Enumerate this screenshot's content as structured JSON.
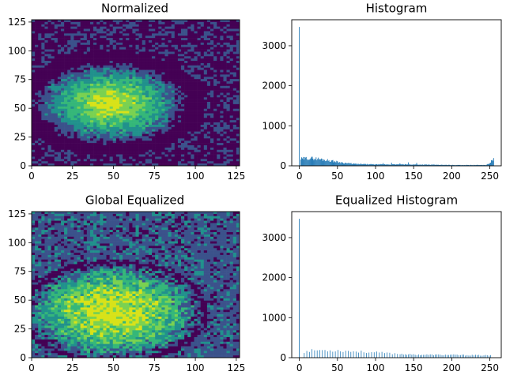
{
  "colors": {
    "bar": "#1f77b4",
    "viridis_low": "#440154",
    "viridis_mid": "#21918c",
    "viridis_high": "#fde725",
    "axis": "#000000"
  },
  "chart_data": [
    {
      "type": "heatmap",
      "title": "Normalized",
      "xlim": [
        0,
        127
      ],
      "ylim": [
        0,
        127
      ],
      "xticks": [
        0,
        25,
        50,
        75,
        100,
        125
      ],
      "yticks": [
        0,
        25,
        50,
        75,
        100,
        125
      ],
      "colormap": "viridis",
      "center": [
        48,
        54
      ],
      "levels": [
        0.12,
        0.3,
        0.5,
        0.7,
        0.88,
        1.0
      ]
    },
    {
      "type": "bar",
      "title": "Histogram",
      "xlim": [
        -10,
        265
      ],
      "ylim": [
        0,
        3650
      ],
      "xticks": [
        0,
        50,
        100,
        150,
        200,
        250
      ],
      "yticks": [
        0,
        1000,
        2000,
        3000
      ],
      "peak": {
        "x": 0,
        "y": 3470
      },
      "tail": [
        {
          "x": 2,
          "y": 170
        },
        {
          "x": 10,
          "y": 190
        },
        {
          "x": 20,
          "y": 185
        },
        {
          "x": 30,
          "y": 160
        },
        {
          "x": 40,
          "y": 130
        },
        {
          "x": 50,
          "y": 100
        },
        {
          "x": 60,
          "y": 70
        },
        {
          "x": 75,
          "y": 45
        },
        {
          "x": 100,
          "y": 35
        },
        {
          "x": 140,
          "y": 35
        },
        {
          "x": 200,
          "y": 20
        },
        {
          "x": 245,
          "y": 20
        },
        {
          "x": 250,
          "y": 60
        },
        {
          "x": 253,
          "y": 150
        },
        {
          "x": 255,
          "y": 160
        }
      ]
    },
    {
      "type": "heatmap",
      "title": "Global Equalized",
      "xlim": [
        0,
        127
      ],
      "ylim": [
        0,
        127
      ],
      "xticks": [
        0,
        25,
        50,
        75,
        100,
        125
      ],
      "yticks": [
        0,
        25,
        50,
        75,
        100,
        125
      ],
      "colormap": "viridis",
      "center": [
        50,
        40
      ],
      "levels": [
        0.12,
        0.3,
        0.5,
        0.7,
        0.88,
        1.0
      ]
    },
    {
      "type": "bar",
      "title": "Equalized Histogram",
      "xlim": [
        -10,
        265
      ],
      "ylim": [
        0,
        3650
      ],
      "xticks": [
        0,
        50,
        100,
        150,
        200,
        250
      ],
      "yticks": [
        0,
        1000,
        2000,
        3000
      ],
      "peak": {
        "x": 0,
        "y": 3470
      },
      "spaced_bars": [
        {
          "x": 5,
          "y": 140
        },
        {
          "x": 20,
          "y": 190
        },
        {
          "x": 50,
          "y": 180
        },
        {
          "x": 80,
          "y": 150
        },
        {
          "x": 110,
          "y": 120
        },
        {
          "x": 150,
          "y": 75
        },
        {
          "x": 200,
          "y": 70
        },
        {
          "x": 252,
          "y": 55
        }
      ]
    }
  ]
}
